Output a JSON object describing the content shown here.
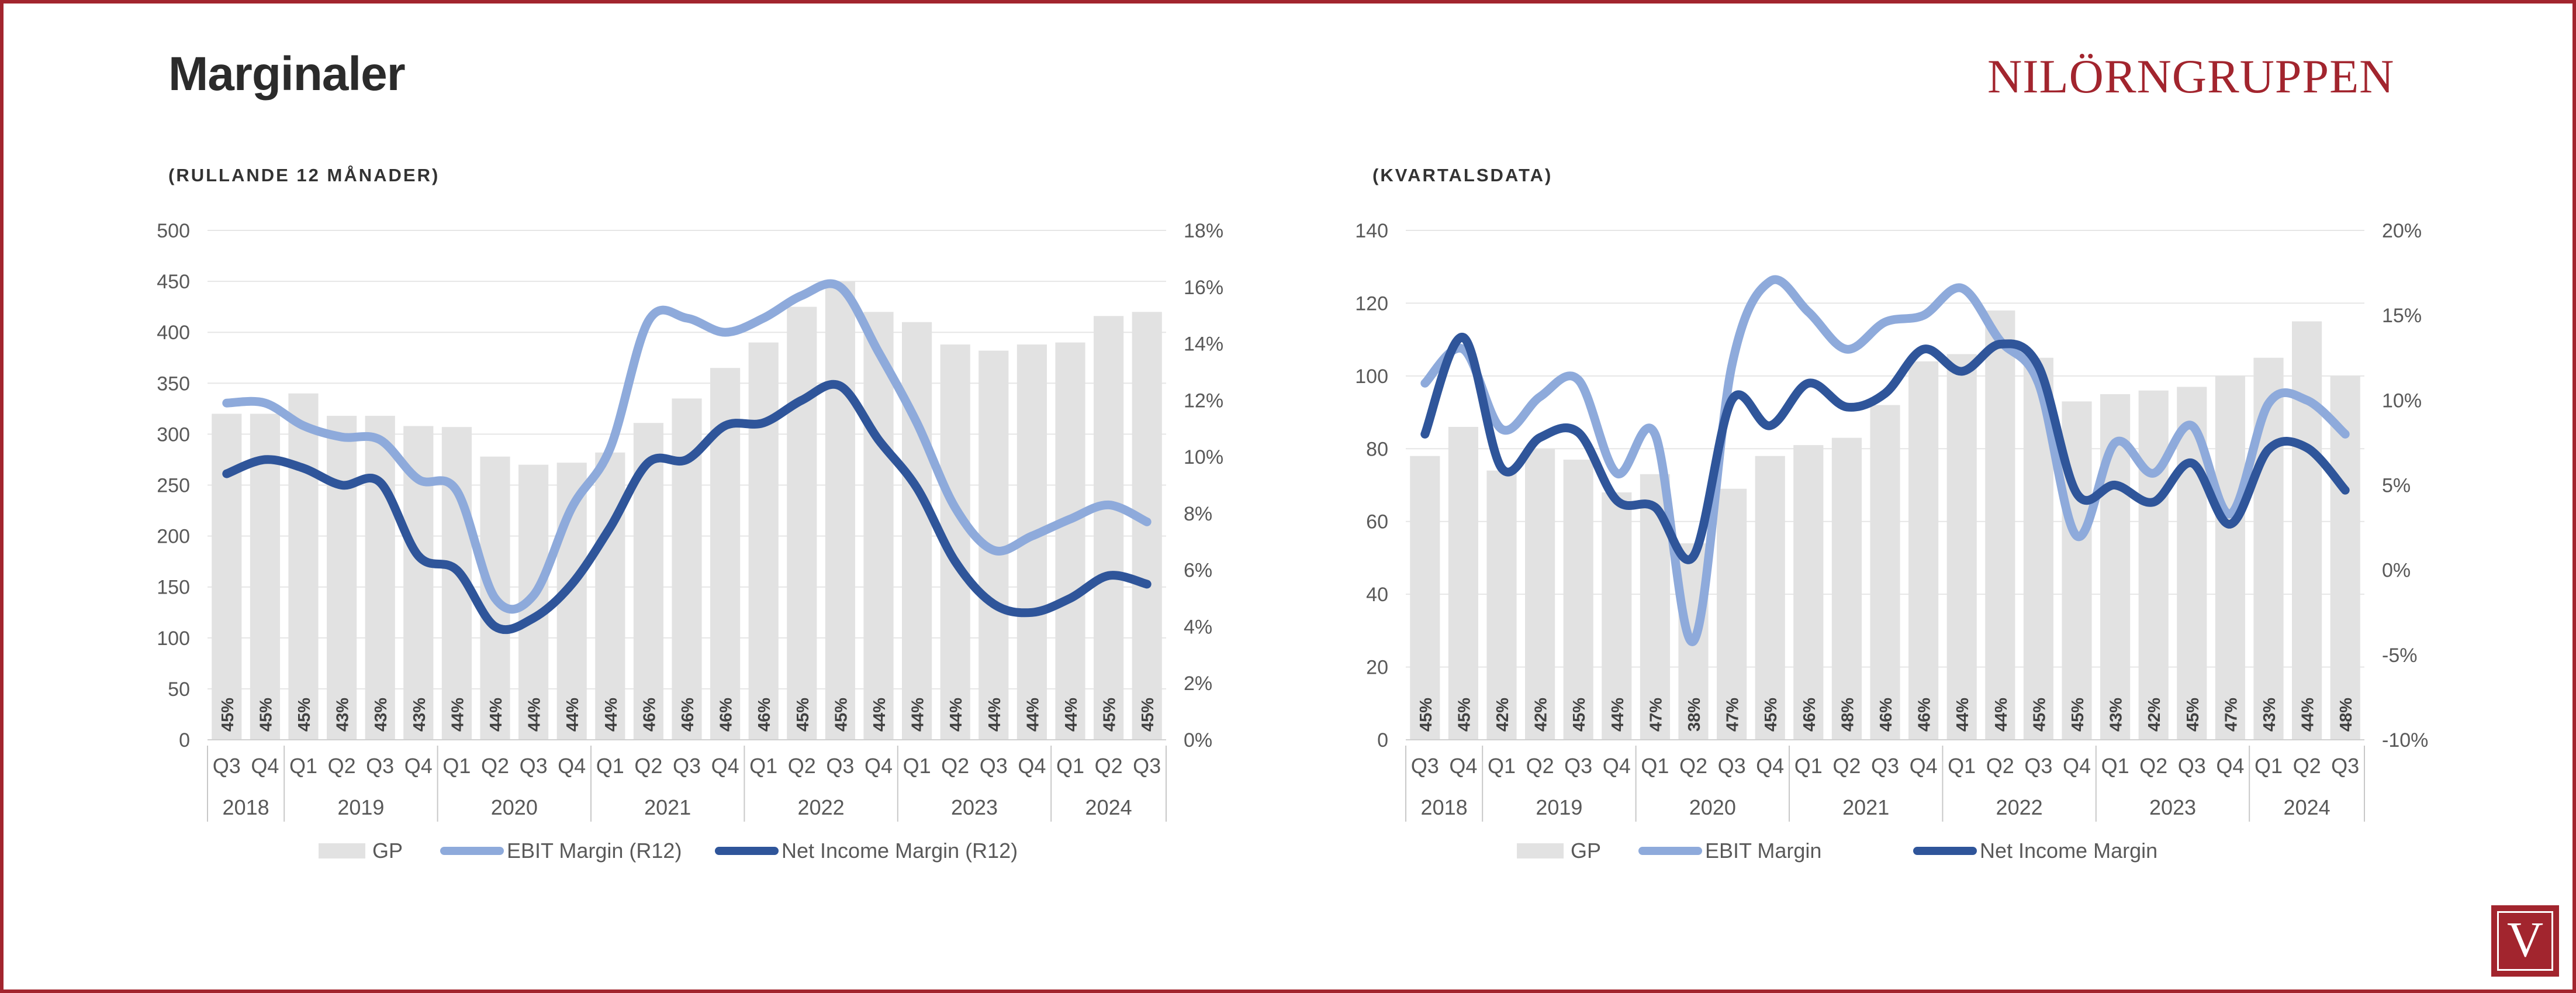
{
  "page": {
    "title": "Marginaler",
    "logo": "NILÖRNGRUPPEN",
    "badge_letter": "V"
  },
  "colors": {
    "frame": "#a2252e",
    "gp_bar": "#e2e2e2",
    "ebit": "#8eaadb",
    "net": "#2f559a",
    "axis_text": "#595959",
    "grid": "#e6e6e6"
  },
  "chart_data": [
    {
      "type": "bar+line",
      "subtitle": "(RULLANDE 12 MÅNADER)",
      "quarters": [
        "Q3",
        "Q4",
        "Q1",
        "Q2",
        "Q3",
        "Q4",
        "Q1",
        "Q2",
        "Q3",
        "Q4",
        "Q1",
        "Q2",
        "Q3",
        "Q4",
        "Q1",
        "Q2",
        "Q3",
        "Q4",
        "Q1",
        "Q2",
        "Q3",
        "Q4",
        "Q1",
        "Q2",
        "Q3"
      ],
      "years": [
        {
          "label": "2018",
          "count": 2
        },
        {
          "label": "2019",
          "count": 4
        },
        {
          "label": "2020",
          "count": 4
        },
        {
          "label": "2021",
          "count": 4
        },
        {
          "label": "2022",
          "count": 4
        },
        {
          "label": "2023",
          "count": 4
        },
        {
          "label": "2024",
          "count": 3
        }
      ],
      "left_axis": {
        "min": 0,
        "max": 500,
        "step": 50,
        "ticks": [
          "0",
          "50",
          "100",
          "150",
          "200",
          "250",
          "300",
          "350",
          "400",
          "450",
          "500"
        ]
      },
      "right_axis": {
        "min": 0,
        "max": 18,
        "step": 2,
        "ticks": [
          "0%",
          "2%",
          "4%",
          "6%",
          "8%",
          "10%",
          "12%",
          "14%",
          "16%",
          "18%"
        ]
      },
      "gp_values": [
        320,
        320,
        340,
        318,
        318,
        308,
        307,
        278,
        270,
        272,
        282,
        311,
        335,
        365,
        390,
        425,
        450,
        420,
        410,
        388,
        382,
        388,
        390,
        416,
        420
      ],
      "gp_margin_labels": [
        "45%",
        "45%",
        "45%",
        "43%",
        "43%",
        "43%",
        "44%",
        "44%",
        "44%",
        "44%",
        "44%",
        "46%",
        "46%",
        "46%",
        "46%",
        "45%",
        "45%",
        "44%",
        "44%",
        "44%",
        "44%",
        "44%",
        "44%",
        "45%",
        "45%"
      ],
      "series": [
        {
          "name": "EBIT Margin (R12)",
          "values": [
            11.9,
            11.9,
            11.1,
            10.7,
            10.6,
            9.2,
            8.8,
            5.0,
            5.1,
            8.2,
            10.3,
            14.8,
            14.9,
            14.4,
            14.9,
            15.7,
            16.0,
            13.7,
            11.2,
            8.2,
            6.7,
            7.2,
            7.8,
            8.3,
            7.7
          ]
        },
        {
          "name": "Net Income Margin (R12)",
          "values": [
            9.4,
            9.9,
            9.6,
            9.0,
            9.1,
            6.5,
            6.0,
            4.0,
            4.3,
            5.5,
            7.5,
            9.8,
            9.9,
            11.1,
            11.2,
            12.0,
            12.5,
            10.6,
            8.9,
            6.3,
            4.8,
            4.5,
            5.0,
            5.8,
            5.5
          ]
        }
      ],
      "legend": [
        "GP",
        "EBIT Margin (R12)",
        "Net Income Margin (R12)"
      ]
    },
    {
      "type": "bar+line",
      "subtitle": "(KVARTALSDATA)",
      "quarters": [
        "Q3",
        "Q4",
        "Q1",
        "Q2",
        "Q3",
        "Q4",
        "Q1",
        "Q2",
        "Q3",
        "Q4",
        "Q1",
        "Q2",
        "Q3",
        "Q4",
        "Q1",
        "Q2",
        "Q3",
        "Q4",
        "Q1",
        "Q2",
        "Q3",
        "Q4",
        "Q1",
        "Q2",
        "Q3"
      ],
      "years": [
        {
          "label": "2018",
          "count": 2
        },
        {
          "label": "2019",
          "count": 4
        },
        {
          "label": "2020",
          "count": 4
        },
        {
          "label": "2021",
          "count": 4
        },
        {
          "label": "2022",
          "count": 4
        },
        {
          "label": "2023",
          "count": 4
        },
        {
          "label": "2024",
          "count": 3
        }
      ],
      "left_axis": {
        "min": 0,
        "max": 140,
        "step": 20,
        "ticks": [
          "0",
          "20",
          "40",
          "60",
          "80",
          "100",
          "120",
          "140"
        ]
      },
      "right_axis": {
        "min": -10,
        "max": 20,
        "step": 5,
        "ticks": [
          "-10%",
          "-5%",
          "0%",
          "5%",
          "10%",
          "15%",
          "20%"
        ]
      },
      "gp_values": [
        78,
        86,
        74,
        80,
        77,
        68,
        73,
        54,
        69,
        78,
        81,
        83,
        92,
        104,
        106,
        118,
        105,
        93,
        95,
        96,
        97,
        100,
        105,
        115,
        100
      ],
      "gp_margin_labels": [
        "45%",
        "45%",
        "42%",
        "42%",
        "45%",
        "44%",
        "47%",
        "38%",
        "47%",
        "45%",
        "46%",
        "48%",
        "46%",
        "46%",
        "44%",
        "44%",
        "45%",
        "45%",
        "43%",
        "42%",
        "45%",
        "47%",
        "43%",
        "44%",
        "48%"
      ],
      "series": [
        {
          "name": "EBIT Margin",
          "values": [
            11.0,
            13.0,
            8.3,
            10.2,
            11.2,
            5.7,
            8.0,
            -4.2,
            12.0,
            17.0,
            15.2,
            13.0,
            14.6,
            15.0,
            16.6,
            13.5,
            11.0,
            2.0,
            7.5,
            5.7,
            8.5,
            3.3,
            9.8,
            10.0,
            8.0
          ]
        },
        {
          "name": "Net Income Margin",
          "values": [
            8.0,
            13.7,
            6.0,
            7.8,
            8.1,
            4.1,
            3.7,
            0.8,
            10.0,
            8.5,
            11.0,
            9.6,
            10.4,
            13.0,
            11.7,
            13.3,
            12.0,
            4.5,
            5.0,
            4.0,
            6.3,
            2.7,
            7.1,
            7.2,
            4.7
          ]
        }
      ],
      "legend": [
        "GP",
        "EBIT Margin",
        "Net Income Margin"
      ]
    }
  ]
}
